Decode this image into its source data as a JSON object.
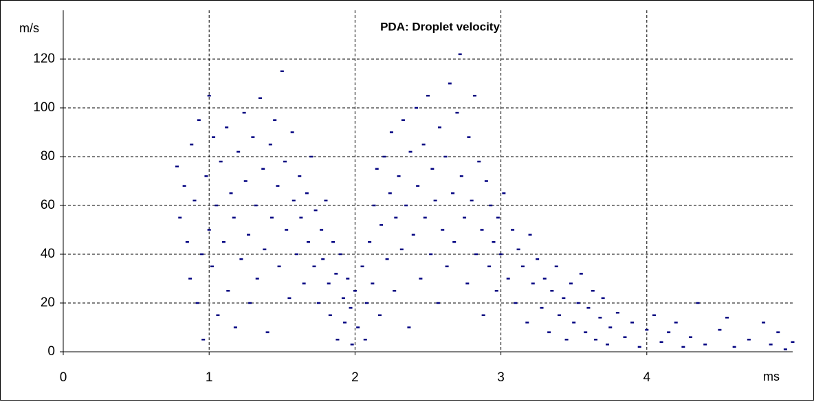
{
  "chart_data": {
    "type": "scatter",
    "title": "PDA: Droplet velocity",
    "y_label": "m/s",
    "x_label": "ms",
    "color": "#000080",
    "grid": true,
    "xlim": [
      0,
      5
    ],
    "xticks": [
      0,
      1,
      2,
      3,
      4
    ],
    "ylim": [
      0,
      140
    ],
    "yticks": [
      0,
      20,
      40,
      60,
      80,
      100,
      120
    ],
    "x": [
      0.78,
      0.8,
      0.83,
      0.85,
      0.87,
      0.88,
      0.9,
      0.92,
      0.93,
      0.95,
      0.96,
      0.98,
      1.0,
      1.0,
      1.02,
      1.03,
      1.05,
      1.06,
      1.08,
      1.1,
      1.12,
      1.13,
      1.15,
      1.17,
      1.18,
      1.2,
      1.22,
      1.24,
      1.25,
      1.27,
      1.28,
      1.3,
      1.32,
      1.33,
      1.35,
      1.37,
      1.38,
      1.4,
      1.42,
      1.43,
      1.45,
      1.47,
      1.48,
      1.5,
      1.52,
      1.53,
      1.55,
      1.57,
      1.58,
      1.6,
      1.62,
      1.63,
      1.65,
      1.67,
      1.68,
      1.7,
      1.72,
      1.73,
      1.75,
      1.77,
      1.78,
      1.8,
      1.82,
      1.83,
      1.85,
      1.87,
      1.88,
      1.9,
      1.92,
      1.93,
      1.95,
      1.97,
      1.98,
      2.0,
      2.02,
      2.05,
      2.07,
      2.08,
      2.1,
      2.12,
      2.13,
      2.15,
      2.17,
      2.18,
      2.2,
      2.22,
      2.24,
      2.25,
      2.27,
      2.28,
      2.3,
      2.32,
      2.33,
      2.35,
      2.37,
      2.38,
      2.4,
      2.42,
      2.43,
      2.45,
      2.47,
      2.48,
      2.5,
      2.52,
      2.53,
      2.55,
      2.57,
      2.58,
      2.6,
      2.62,
      2.63,
      2.65,
      2.67,
      2.68,
      2.7,
      2.72,
      2.73,
      2.75,
      2.77,
      2.78,
      2.8,
      2.82,
      2.83,
      2.85,
      2.87,
      2.88,
      2.9,
      2.92,
      2.93,
      2.95,
      2.97,
      2.98,
      3.0,
      3.02,
      3.05,
      3.08,
      3.1,
      3.12,
      3.15,
      3.18,
      3.2,
      3.22,
      3.25,
      3.28,
      3.3,
      3.33,
      3.35,
      3.38,
      3.4,
      3.43,
      3.45,
      3.48,
      3.5,
      3.53,
      3.55,
      3.58,
      3.6,
      3.63,
      3.65,
      3.68,
      3.7,
      3.73,
      3.75,
      3.8,
      3.85,
      3.9,
      3.95,
      4.0,
      4.05,
      4.1,
      4.15,
      4.2,
      4.25,
      4.3,
      4.35,
      4.4,
      4.5,
      4.55,
      4.6,
      4.7,
      4.8,
      4.85,
      4.9,
      4.95,
      5.0
    ],
    "values": [
      76,
      55,
      68,
      45,
      30,
      85,
      62,
      20,
      95,
      40,
      5,
      72,
      50,
      105,
      35,
      88,
      60,
      15,
      78,
      45,
      92,
      25,
      65,
      55,
      10,
      82,
      38,
      98,
      70,
      48,
      20,
      88,
      60,
      30,
      104,
      75,
      42,
      8,
      85,
      55,
      95,
      68,
      35,
      115,
      78,
      50,
      22,
      90,
      62,
      40,
      72,
      55,
      28,
      65,
      45,
      80,
      35,
      58,
      20,
      50,
      38,
      62,
      28,
      15,
      45,
      32,
      5,
      40,
      22,
      12,
      30,
      18,
      3,
      25,
      10,
      35,
      5,
      20,
      45,
      28,
      60,
      75,
      15,
      52,
      80,
      38,
      65,
      90,
      25,
      55,
      72,
      42,
      95,
      60,
      10,
      82,
      48,
      100,
      68,
      30,
      85,
      55,
      105,
      40,
      75,
      62,
      20,
      92,
      50,
      80,
      35,
      110,
      65,
      45,
      98,
      122,
      72,
      55,
      28,
      88,
      62,
      105,
      40,
      78,
      50,
      15,
      70,
      35,
      60,
      45,
      25,
      55,
      40,
      65,
      30,
      50,
      20,
      42,
      35,
      12,
      48,
      28,
      38,
      18,
      30,
      8,
      25,
      35,
      15,
      22,
      5,
      28,
      12,
      20,
      32,
      8,
      18,
      25,
      5,
      14,
      22,
      3,
      10,
      16,
      6,
      12,
      2,
      9,
      15,
      4,
      8,
      12,
      2,
      6,
      20,
      3,
      9,
      14,
      2,
      5,
      12,
      3,
      8,
      1,
      4
    ]
  }
}
